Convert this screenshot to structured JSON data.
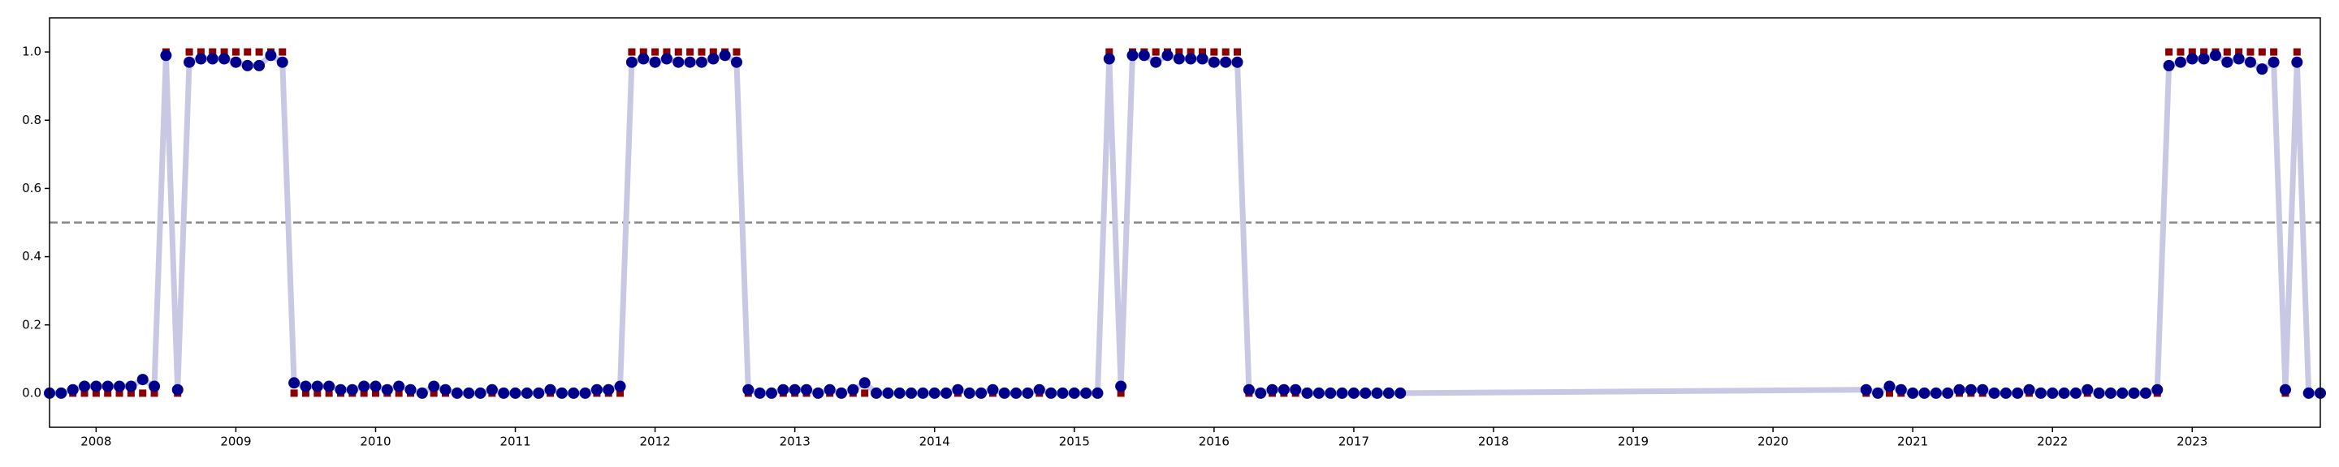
{
  "chart_data": {
    "type": "line",
    "x": [
      "2007-09",
      "2007-10",
      "2007-11",
      "2007-12",
      "2008-01",
      "2008-02",
      "2008-03",
      "2008-04",
      "2008-05",
      "2008-06",
      "2008-07",
      "2008-08",
      "2008-09",
      "2008-10",
      "2008-11",
      "2008-12",
      "2009-01",
      "2009-02",
      "2009-03",
      "2009-04",
      "2009-05",
      "2009-06",
      "2009-07",
      "2009-08",
      "2009-09",
      "2009-10",
      "2009-11",
      "2009-12",
      "2010-01",
      "2010-02",
      "2010-03",
      "2010-04",
      "2010-05",
      "2010-06",
      "2010-07",
      "2010-08",
      "2010-09",
      "2010-10",
      "2010-11",
      "2010-12",
      "2011-01",
      "2011-02",
      "2011-03",
      "2011-04",
      "2011-05",
      "2011-06",
      "2011-07",
      "2011-08",
      "2011-09",
      "2011-10",
      "2011-11",
      "2011-12",
      "2012-01",
      "2012-02",
      "2012-03",
      "2012-04",
      "2012-05",
      "2012-06",
      "2012-07",
      "2012-08",
      "2012-09",
      "2012-10",
      "2012-11",
      "2012-12",
      "2013-01",
      "2013-02",
      "2013-03",
      "2013-04",
      "2013-05",
      "2013-06",
      "2013-07",
      "2013-08",
      "2013-09",
      "2013-10",
      "2013-11",
      "2013-12",
      "2014-01",
      "2014-02",
      "2014-03",
      "2014-04",
      "2014-05",
      "2014-06",
      "2014-07",
      "2014-08",
      "2014-09",
      "2014-10",
      "2014-11",
      "2014-12",
      "2015-01",
      "2015-02",
      "2015-03",
      "2015-04",
      "2015-05",
      "2015-06",
      "2015-07",
      "2015-08",
      "2015-09",
      "2015-10",
      "2015-11",
      "2015-12",
      "2016-01",
      "2016-02",
      "2016-03",
      "2016-04",
      "2016-05",
      "2016-06",
      "2016-07",
      "2016-08",
      "2016-09",
      "2016-10",
      "2016-11",
      "2016-12",
      "2017-01",
      "2017-02",
      "2017-03",
      "2017-04",
      "2017-05",
      "2020-09",
      "2020-10",
      "2020-11",
      "2020-12",
      "2021-01",
      "2021-02",
      "2021-03",
      "2021-04",
      "2021-05",
      "2021-06",
      "2021-07",
      "2021-08",
      "2021-09",
      "2021-10",
      "2021-11",
      "2021-12",
      "2022-01",
      "2022-02",
      "2022-03",
      "2022-04",
      "2022-05",
      "2022-06",
      "2022-07",
      "2022-08",
      "2022-09",
      "2022-10",
      "2022-11",
      "2022-12",
      "2023-01",
      "2023-02",
      "2023-03",
      "2023-04",
      "2023-05",
      "2023-06",
      "2023-07",
      "2023-08",
      "2023-09",
      "2023-10",
      "2023-11",
      "2023-12"
    ],
    "series": [
      {
        "color": "#00008b",
        "line_color": "#c8c8e4",
        "marker": "circle",
        "values": [
          0.0,
          0.0,
          0.01,
          0.02,
          0.02,
          0.02,
          0.02,
          0.02,
          0.04,
          0.02,
          0.99,
          0.01,
          0.97,
          0.98,
          0.98,
          0.98,
          0.97,
          0.96,
          0.96,
          0.99,
          0.97,
          0.03,
          0.02,
          0.02,
          0.02,
          0.01,
          0.01,
          0.02,
          0.02,
          0.01,
          0.02,
          0.01,
          0.0,
          0.02,
          0.01,
          0.0,
          0.0,
          0.0,
          0.01,
          0.0,
          0.0,
          0.0,
          0.0,
          0.01,
          0.0,
          0.0,
          0.0,
          0.01,
          0.01,
          0.02,
          0.97,
          0.98,
          0.97,
          0.98,
          0.97,
          0.97,
          0.97,
          0.98,
          0.99,
          0.97,
          0.01,
          0.0,
          0.0,
          0.01,
          0.01,
          0.01,
          0.0,
          0.01,
          0.0,
          0.01,
          0.03,
          0.0,
          0.0,
          0.0,
          0.0,
          0.0,
          0.0,
          0.0,
          0.01,
          0.0,
          0.0,
          0.01,
          0.0,
          0.0,
          0.0,
          0.01,
          0.0,
          0.0,
          0.0,
          0.0,
          0.0,
          0.98,
          0.02,
          0.99,
          0.99,
          0.97,
          0.99,
          0.98,
          0.98,
          0.98,
          0.97,
          0.97,
          0.97,
          0.01,
          0.0,
          0.01,
          0.01,
          0.01,
          0.0,
          0.0,
          0.0,
          0.0,
          0.0,
          0.0,
          0.0,
          0.0,
          0.0,
          0.01,
          0.0,
          0.02,
          0.01,
          0.0,
          0.0,
          0.0,
          0.0,
          0.01,
          0.01,
          0.01,
          0.0,
          0.0,
          0.0,
          0.01,
          0.0,
          0.0,
          0.0,
          0.0,
          0.01,
          0.0,
          0.0,
          0.0,
          0.0,
          0.0,
          0.01,
          0.96,
          0.97,
          0.98,
          0.98,
          0.99,
          0.97,
          0.98,
          0.97,
          0.95,
          0.97,
          0.01,
          0.97,
          0.0,
          0.0
        ]
      },
      {
        "color": "#8b0000",
        "marker": "square",
        "values": [
          0,
          0,
          0,
          0,
          0,
          0,
          0,
          0,
          0,
          0,
          1,
          0,
          1,
          1,
          1,
          1,
          1,
          1,
          1,
          1,
          1,
          0,
          0,
          0,
          0,
          0,
          0,
          0,
          0,
          0,
          0,
          0,
          0,
          0,
          0,
          0,
          0,
          0,
          0,
          0,
          0,
          0,
          0,
          0,
          0,
          0,
          0,
          0,
          0,
          0,
          1,
          1,
          1,
          1,
          1,
          1,
          1,
          1,
          1,
          1,
          0,
          0,
          0,
          0,
          0,
          0,
          0,
          0,
          0,
          0,
          0,
          0,
          0,
          0,
          0,
          0,
          0,
          0,
          0,
          0,
          0,
          0,
          0,
          0,
          0,
          0,
          0,
          0,
          0,
          0,
          0,
          1,
          0,
          1,
          1,
          1,
          1,
          1,
          1,
          1,
          1,
          1,
          1,
          0,
          0,
          0,
          0,
          0,
          0,
          0,
          0,
          0,
          0,
          0,
          0,
          0,
          0,
          0,
          0,
          0,
          0,
          0,
          0,
          0,
          0,
          0,
          0,
          0,
          0,
          0,
          0,
          0,
          0,
          0,
          0,
          0,
          0,
          0,
          0,
          0,
          0,
          0,
          0,
          1,
          1,
          1,
          1,
          1,
          1,
          1,
          1,
          1,
          1,
          0,
          1,
          0,
          0
        ]
      }
    ],
    "xlim": [
      "2007-09",
      "2023-12"
    ],
    "xticks": [
      {
        "value": "2008-01",
        "label": "2008"
      },
      {
        "value": "2009-01",
        "label": "2009"
      },
      {
        "value": "2010-01",
        "label": "2010"
      },
      {
        "value": "2011-01",
        "label": "2011"
      },
      {
        "value": "2012-01",
        "label": "2012"
      },
      {
        "value": "2013-01",
        "label": "2013"
      },
      {
        "value": "2014-01",
        "label": "2014"
      },
      {
        "value": "2015-01",
        "label": "2015"
      },
      {
        "value": "2016-01",
        "label": "2016"
      },
      {
        "value": "2017-01",
        "label": "2017"
      },
      {
        "value": "2018-01",
        "label": "2018"
      },
      {
        "value": "2019-01",
        "label": "2019"
      },
      {
        "value": "2020-01",
        "label": "2020"
      },
      {
        "value": "2021-01",
        "label": "2021"
      },
      {
        "value": "2022-01",
        "label": "2022"
      },
      {
        "value": "2023-01",
        "label": "2023"
      }
    ],
    "ylim": [
      -0.1,
      1.1
    ],
    "yticks": [
      {
        "value": 0,
        "label": "0.0"
      },
      0.2,
      0.4,
      0.6,
      0.8,
      {
        "value": 1,
        "label": "1.0"
      }
    ],
    "hlines": [
      {
        "value": 0.5,
        "color": "#888888",
        "style": "dashed"
      }
    ],
    "grid": false
  }
}
